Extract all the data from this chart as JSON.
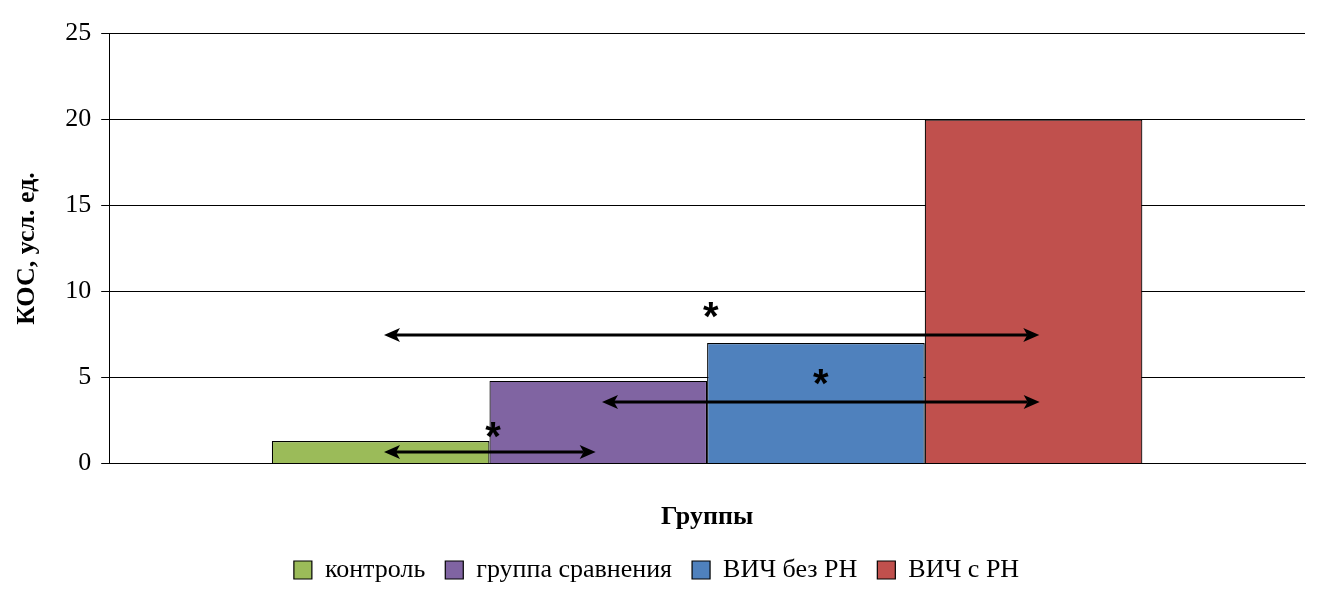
{
  "chart_data": {
    "type": "bar",
    "xlabel": "Группы",
    "ylabel": "КОС, усл. ед.",
    "categories": [
      null
    ],
    "series": [
      {
        "name": "контроль",
        "color": "#9bbb59",
        "values": [
          1.3
        ]
      },
      {
        "name": "группа сравнения",
        "color": "#8064a2",
        "values": [
          4.8
        ]
      },
      {
        "name": "ВИЧ без РН",
        "color": "#4f81bd",
        "values": [
          7
        ]
      },
      {
        "name": "ВИЧ с РН",
        "color": "#c0504d",
        "values": [
          20
        ]
      }
    ],
    "ylim": [
      0,
      25
    ],
    "yticks": [
      0,
      5,
      10,
      15,
      20,
      25
    ],
    "grid": "y",
    "legend": "bottom",
    "annotations": [
      "*",
      "*",
      "*"
    ]
  }
}
